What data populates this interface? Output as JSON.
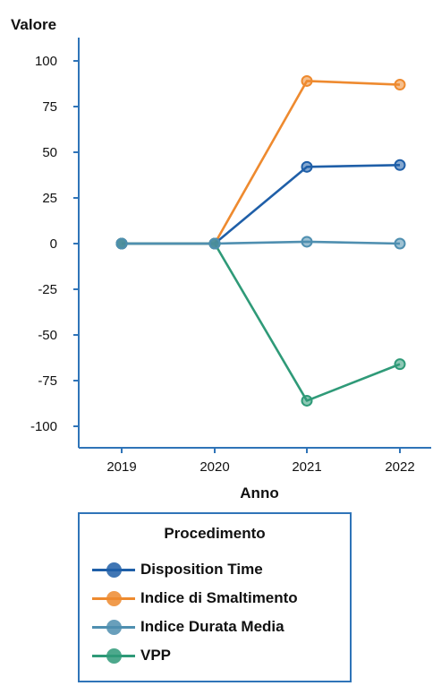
{
  "chart_data": {
    "type": "line",
    "ylabel": "Valore",
    "xlabel": "Anno",
    "categories": [
      "2019",
      "2020",
      "2021",
      "2022"
    ],
    "ylim": [
      -110,
      110
    ],
    "yticks": [
      100,
      75,
      50,
      25,
      0,
      -25,
      -50,
      -75,
      -100
    ],
    "grid": false,
    "legend_placement": "bottom",
    "legend_title": "Procedimento",
    "series": [
      {
        "name": "Disposition Time",
        "color": "#1f5fa8",
        "values": [
          0,
          0,
          42,
          43
        ]
      },
      {
        "name": "Indice di Smaltimento",
        "color": "#ee8a2f",
        "values": [
          0,
          0,
          89,
          87
        ]
      },
      {
        "name": "Indice Durata Media",
        "color": "#4f8fb0",
        "values": [
          0,
          0,
          1,
          0
        ]
      },
      {
        "name": "VPP",
        "color": "#2f9a78",
        "values": [
          0,
          0,
          -86,
          -66
        ]
      }
    ]
  }
}
